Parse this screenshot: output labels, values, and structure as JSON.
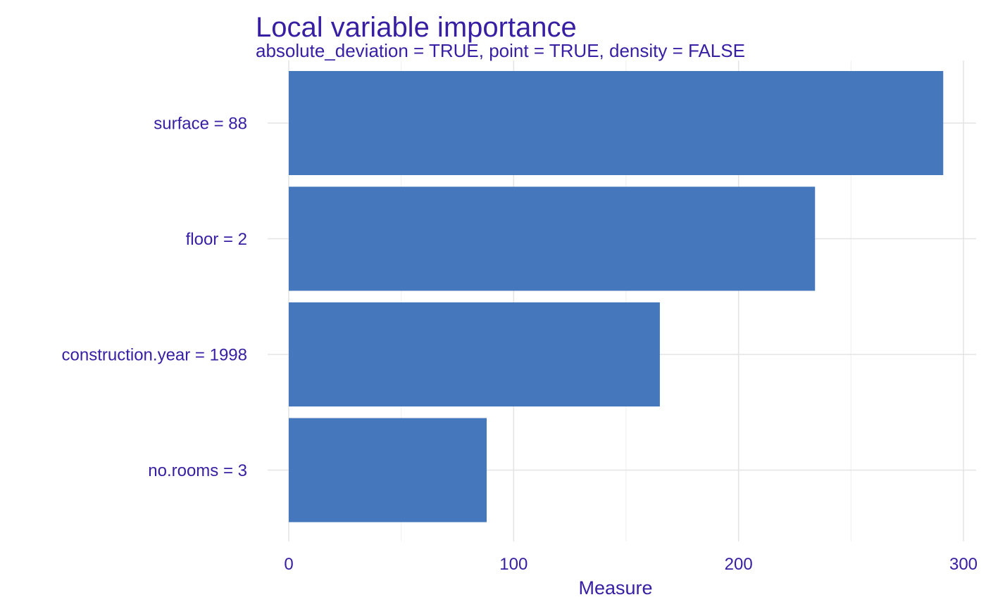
{
  "colors": {
    "bar": "#4477BB",
    "text": "#371EA3",
    "grid_major": "#E4E4E4",
    "grid_minor": "#F1F1F1",
    "background": "#FFFFFF"
  },
  "chart_data": {
    "type": "bar",
    "orientation": "horizontal",
    "title": "Local variable importance",
    "subtitle": "absolute_deviation = TRUE, point = TRUE, density = FALSE",
    "xlabel": "Measure",
    "ylabel": "",
    "categories": [
      "surface = 88",
      "floor = 2",
      "construction.year = 1998",
      "no.rooms = 3"
    ],
    "values": [
      291,
      234,
      165,
      88
    ],
    "xlim": [
      0,
      305
    ],
    "xticks": [
      0,
      100,
      200,
      300
    ],
    "xtick_labels": [
      "0",
      "100",
      "200",
      "300"
    ],
    "minor_xticks": [
      50,
      150,
      250
    ],
    "grid": true,
    "legend": "none"
  }
}
